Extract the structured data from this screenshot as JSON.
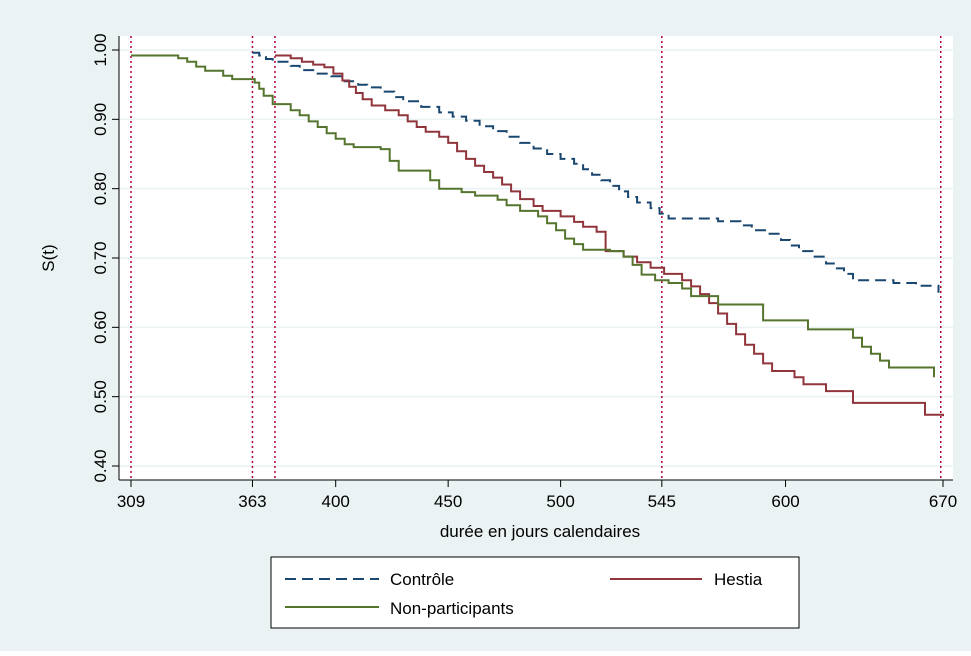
{
  "colors": {
    "background": "#eaf2f3",
    "plot_background": "#ffffff",
    "grid": "#eaf2f3",
    "reference_lines": "#b00037",
    "controle": "#1a476f",
    "hestia": "#90353b",
    "non_participants": "#55752f"
  },
  "chart_data": {
    "type": "line",
    "subtype": "step (Kaplan-Meier survival estimates)",
    "title": "",
    "xlabel": "durée en jours calendaires",
    "ylabel": "S(t)",
    "xlim": [
      309,
      670
    ],
    "ylim": [
      0.4,
      1.0
    ],
    "x_ticks": [
      309,
      363,
      400,
      450,
      500,
      545,
      600,
      670
    ],
    "x_tick_labels": [
      "309",
      "363",
      "400",
      "450",
      "500",
      "545",
      "600",
      "670"
    ],
    "y_ticks": [
      0.4,
      0.5,
      0.6,
      0.7,
      0.8,
      0.9,
      1.0
    ],
    "y_tick_labels": [
      "0.40",
      "0.50",
      "0.60",
      "0.70",
      "0.80",
      "0.90",
      "1.00"
    ],
    "grid": "horizontal",
    "reference_lines_x": [
      309,
      363,
      373,
      545,
      669
    ],
    "reference_line_style": "dotted",
    "legend_position": "bottom",
    "series": [
      {
        "name": "Contrôle",
        "color_key": "controle",
        "dash": "dashed",
        "points": [
          [
            363,
            0.996
          ],
          [
            366,
            0.992
          ],
          [
            369,
            0.987
          ],
          [
            372,
            0.983
          ],
          [
            380,
            0.977
          ],
          [
            384,
            0.971
          ],
          [
            390,
            0.966
          ],
          [
            398,
            0.962
          ],
          [
            404,
            0.955
          ],
          [
            410,
            0.95
          ],
          [
            414,
            0.946
          ],
          [
            420,
            0.94
          ],
          [
            426,
            0.932
          ],
          [
            430,
            0.926
          ],
          [
            438,
            0.918
          ],
          [
            446,
            0.91
          ],
          [
            452,
            0.904
          ],
          [
            458,
            0.898
          ],
          [
            464,
            0.89
          ],
          [
            470,
            0.883
          ],
          [
            476,
            0.875
          ],
          [
            482,
            0.866
          ],
          [
            488,
            0.858
          ],
          [
            494,
            0.85
          ],
          [
            500,
            0.843
          ],
          [
            506,
            0.836
          ],
          [
            510,
            0.828
          ],
          [
            514,
            0.82
          ],
          [
            518,
            0.812
          ],
          [
            522,
            0.804
          ],
          [
            526,
            0.796
          ],
          [
            530,
            0.788
          ],
          [
            534,
            0.78
          ],
          [
            540,
            0.772
          ],
          [
            544,
            0.764
          ],
          [
            548,
            0.757
          ],
          [
            570,
            0.753
          ],
          [
            580,
            0.747
          ],
          [
            585,
            0.74
          ],
          [
            592,
            0.735
          ],
          [
            598,
            0.726
          ],
          [
            602,
            0.718
          ],
          [
            606,
            0.71
          ],
          [
            612,
            0.702
          ],
          [
            618,
            0.692
          ],
          [
            622,
            0.685
          ],
          [
            626,
            0.677
          ],
          [
            630,
            0.668
          ],
          [
            648,
            0.664
          ],
          [
            658,
            0.66
          ],
          [
            668,
            0.65
          ]
        ]
      },
      {
        "name": "Hestia",
        "color_key": "hestia",
        "dash": "solid",
        "points": [
          [
            373,
            0.992
          ],
          [
            380,
            0.988
          ],
          [
            385,
            0.983
          ],
          [
            390,
            0.979
          ],
          [
            395,
            0.975
          ],
          [
            399,
            0.966
          ],
          [
            403,
            0.956
          ],
          [
            406,
            0.947
          ],
          [
            409,
            0.938
          ],
          [
            412,
            0.929
          ],
          [
            416,
            0.92
          ],
          [
            422,
            0.913
          ],
          [
            428,
            0.906
          ],
          [
            432,
            0.897
          ],
          [
            436,
            0.889
          ],
          [
            440,
            0.882
          ],
          [
            446,
            0.875
          ],
          [
            450,
            0.866
          ],
          [
            454,
            0.854
          ],
          [
            458,
            0.843
          ],
          [
            462,
            0.833
          ],
          [
            466,
            0.824
          ],
          [
            470,
            0.816
          ],
          [
            474,
            0.806
          ],
          [
            478,
            0.796
          ],
          [
            482,
            0.785
          ],
          [
            488,
            0.775
          ],
          [
            492,
            0.768
          ],
          [
            500,
            0.76
          ],
          [
            506,
            0.752
          ],
          [
            510,
            0.745
          ],
          [
            516,
            0.738
          ],
          [
            520,
            0.71
          ],
          [
            528,
            0.702
          ],
          [
            534,
            0.694
          ],
          [
            540,
            0.686
          ],
          [
            546,
            0.677
          ],
          [
            554,
            0.668
          ],
          [
            558,
            0.659
          ],
          [
            562,
            0.648
          ],
          [
            566,
            0.635
          ],
          [
            570,
            0.62
          ],
          [
            574,
            0.605
          ],
          [
            578,
            0.59
          ],
          [
            582,
            0.575
          ],
          [
            586,
            0.562
          ],
          [
            590,
            0.548
          ],
          [
            594,
            0.537
          ],
          [
            604,
            0.528
          ],
          [
            608,
            0.518
          ],
          [
            618,
            0.508
          ],
          [
            630,
            0.491
          ],
          [
            662,
            0.474
          ],
          [
            670,
            0.472
          ]
        ]
      },
      {
        "name": "Non-participants",
        "color_key": "non_participants",
        "dash": "solid",
        "points": [
          [
            309,
            0.992
          ],
          [
            330,
            0.988
          ],
          [
            334,
            0.983
          ],
          [
            338,
            0.976
          ],
          [
            342,
            0.97
          ],
          [
            350,
            0.963
          ],
          [
            354,
            0.958
          ],
          [
            364,
            0.953
          ],
          [
            366,
            0.944
          ],
          [
            368,
            0.934
          ],
          [
            372,
            0.922
          ],
          [
            380,
            0.913
          ],
          [
            384,
            0.906
          ],
          [
            388,
            0.897
          ],
          [
            392,
            0.889
          ],
          [
            396,
            0.88
          ],
          [
            400,
            0.872
          ],
          [
            404,
            0.864
          ],
          [
            408,
            0.86
          ],
          [
            420,
            0.857
          ],
          [
            424,
            0.84
          ],
          [
            428,
            0.826
          ],
          [
            442,
            0.812
          ],
          [
            446,
            0.8
          ],
          [
            456,
            0.795
          ],
          [
            462,
            0.79
          ],
          [
            472,
            0.784
          ],
          [
            476,
            0.776
          ],
          [
            482,
            0.768
          ],
          [
            490,
            0.76
          ],
          [
            494,
            0.75
          ],
          [
            498,
            0.74
          ],
          [
            502,
            0.728
          ],
          [
            506,
            0.72
          ],
          [
            510,
            0.712
          ],
          [
            522,
            0.71
          ],
          [
            528,
            0.702
          ],
          [
            532,
            0.69
          ],
          [
            536,
            0.676
          ],
          [
            542,
            0.668
          ],
          [
            548,
            0.664
          ],
          [
            554,
            0.656
          ],
          [
            558,
            0.645
          ],
          [
            570,
            0.633
          ],
          [
            590,
            0.61
          ],
          [
            610,
            0.597
          ],
          [
            630,
            0.585
          ],
          [
            634,
            0.572
          ],
          [
            638,
            0.562
          ],
          [
            642,
            0.552
          ],
          [
            646,
            0.542
          ],
          [
            666,
            0.528
          ]
        ]
      }
    ]
  }
}
